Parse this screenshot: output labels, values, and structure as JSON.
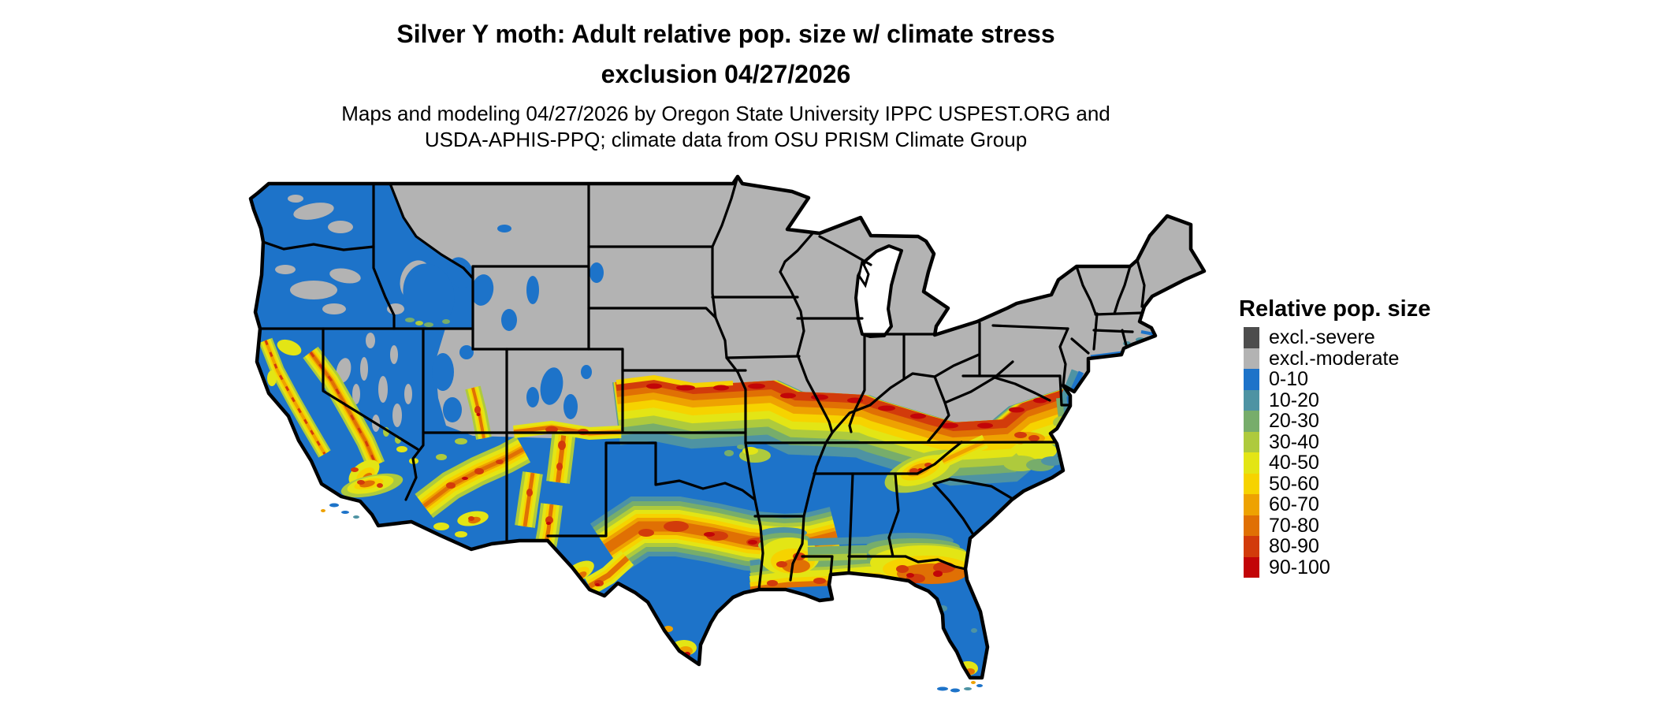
{
  "title": {
    "line1": "Silver Y moth: Adult relative pop. size w/ climate stress",
    "line2": "exclusion 04/27/2026"
  },
  "subtitle": {
    "line1": "Maps and modeling 04/27/2026 by Oregon State University IPPC USPEST.ORG and",
    "line2": "USDA-APHIS-PPQ; climate data from OSU PRISM Climate Group"
  },
  "legend": {
    "title": "Relative pop. size",
    "items": [
      {
        "label": "excl.-severe",
        "color": "#4d4d4d"
      },
      {
        "label": "excl.-moderate",
        "color": "#b3b3b3"
      },
      {
        "label": "0-10",
        "color": "#1d73c9"
      },
      {
        "label": "10-20",
        "color": "#4e93a3"
      },
      {
        "label": "20-30",
        "color": "#77ad6b"
      },
      {
        "label": "30-40",
        "color": "#aeca3d"
      },
      {
        "label": "40-50",
        "color": "#e3e515"
      },
      {
        "label": "50-60",
        "color": "#f6d300"
      },
      {
        "label": "60-70",
        "color": "#eea201"
      },
      {
        "label": "70-80",
        "color": "#e07004"
      },
      {
        "label": "80-90",
        "color": "#d23b0b"
      },
      {
        "label": "90-100",
        "color": "#c20508"
      }
    ]
  },
  "map": {
    "region": "Continental United States",
    "border_color": "#000000",
    "background_color": "#ffffff"
  }
}
